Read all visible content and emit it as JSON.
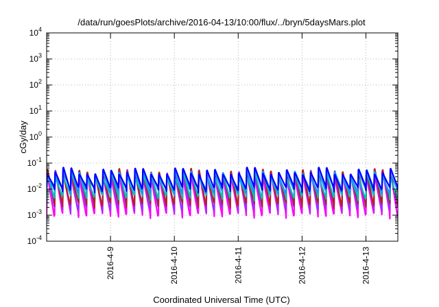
{
  "chart_data": {
    "type": "line",
    "title": "/data/run/goesPlots/archive/2016-04-13/10:00/flux/../bryn/5daysMars.plot",
    "xlabel": "Coordinated Universal Time (UTC)",
    "ylabel": "cGy/day",
    "y_scale": "log",
    "ylim_exponents": [
      -4,
      4
    ],
    "y_ticks": [
      {
        "base": "10",
        "exp": "-4"
      },
      {
        "base": "10",
        "exp": "-3"
      },
      {
        "base": "10",
        "exp": "-2"
      },
      {
        "base": "10",
        "exp": "-1"
      },
      {
        "base": "10",
        "exp": "0"
      },
      {
        "base": "10",
        "exp": "1"
      },
      {
        "base": "10",
        "exp": "2"
      },
      {
        "base": "10",
        "exp": "3"
      },
      {
        "base": "10",
        "exp": "4"
      }
    ],
    "xlim": [
      "2016-04-08 00:00",
      "2016-04-13 12:00"
    ],
    "x_ticks": [
      "2016-4-9",
      "2016-4-10",
      "2016-4-11",
      "2016-4-12",
      "2016-4-13"
    ],
    "grid": true,
    "legend": "none",
    "pattern": {
      "period_hours": 3,
      "peak_value": 0.06,
      "decay_minimum": 0.01
    },
    "series": [
      {
        "color": "#ff00ff",
        "peak": 0.055,
        "min": 0.0012
      },
      {
        "color": "#9b30ff",
        "peak": 0.06,
        "min": 0.002
      },
      {
        "color": "#b22222",
        "peak": 0.065,
        "min": 0.003
      },
      {
        "color": "#00bfbf",
        "peak": 0.05,
        "min": 0.006
      },
      {
        "color": "#1e90ff",
        "peak": 0.06,
        "min": 0.01
      },
      {
        "color": "#0000ff",
        "peak": 0.07,
        "min": 0.012
      }
    ]
  }
}
